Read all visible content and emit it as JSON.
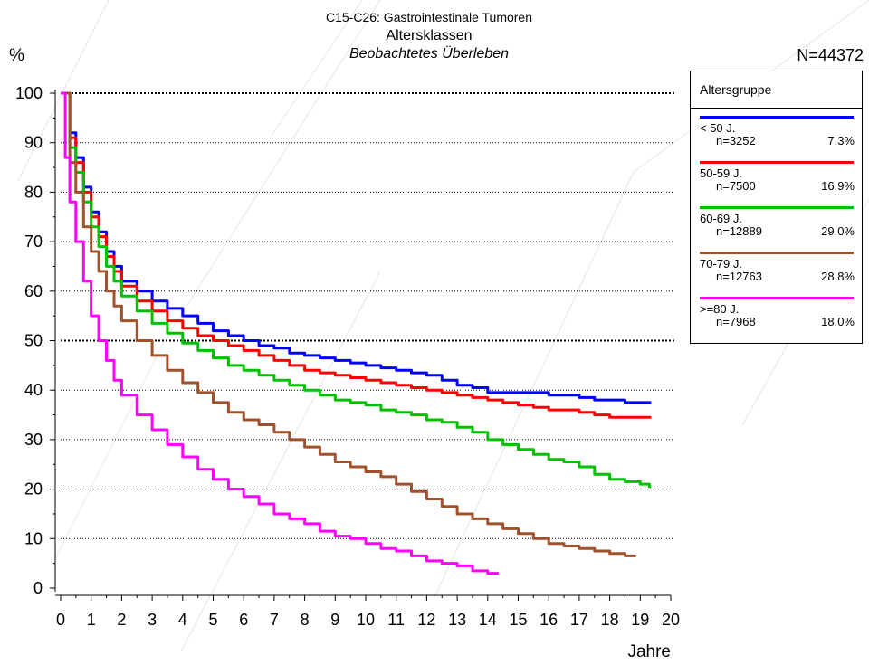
{
  "header": {
    "title": "C15-C26: Gastrointestinale Tumoren",
    "subtitle": "Altersklassen",
    "subtitle2": "Beobachtetes Überleben",
    "y_unit": "%",
    "n_total": "N=44372"
  },
  "chart_data": {
    "type": "line",
    "title": "C15-C26: Gastrointestinale Tumoren",
    "subtitle": "Altersklassen",
    "xlabel": "Jahre",
    "ylabel": "%",
    "xlim": [
      0,
      20
    ],
    "ylim": [
      0,
      100
    ],
    "x_ticks": [
      "0",
      "1",
      "2",
      "3",
      "4",
      "5",
      "6",
      "7",
      "8",
      "9",
      "10",
      "11",
      "12",
      "13",
      "14",
      "15",
      "16",
      "17",
      "18",
      "19",
      "20"
    ],
    "y_ticks": [
      "0",
      "10",
      "20",
      "30",
      "40",
      "50",
      "60",
      "70",
      "80",
      "90",
      "100"
    ],
    "grid": "horizontal dotted",
    "legend_position": "right",
    "series": [
      {
        "name": "< 50 J.",
        "n": "n=3252",
        "pct": "7.3%",
        "color": "#0000FF",
        "points": [
          [
            0,
            100
          ],
          [
            0.3,
            92
          ],
          [
            0.5,
            87
          ],
          [
            0.75,
            81
          ],
          [
            1,
            76
          ],
          [
            1.25,
            72
          ],
          [
            1.5,
            68
          ],
          [
            1.75,
            65
          ],
          [
            2,
            62
          ],
          [
            2.5,
            60
          ],
          [
            3,
            58
          ],
          [
            3.5,
            56.5
          ],
          [
            4,
            55
          ],
          [
            4.5,
            53.5
          ],
          [
            5,
            52
          ],
          [
            5.5,
            51
          ],
          [
            6,
            50
          ],
          [
            6.5,
            49
          ],
          [
            7,
            48.5
          ],
          [
            7.5,
            47.5
          ],
          [
            8,
            47
          ],
          [
            8.5,
            46.5
          ],
          [
            9,
            46
          ],
          [
            9.5,
            45.5
          ],
          [
            10,
            45
          ],
          [
            10.5,
            44.5
          ],
          [
            11,
            44
          ],
          [
            11.5,
            43.5
          ],
          [
            12,
            43
          ],
          [
            12.5,
            42
          ],
          [
            13,
            41
          ],
          [
            13.5,
            40.5
          ],
          [
            14,
            39.5
          ],
          [
            14.5,
            39.5
          ],
          [
            15,
            39.5
          ],
          [
            15.5,
            39.5
          ],
          [
            16,
            39
          ],
          [
            16.5,
            39
          ],
          [
            17,
            38.5
          ],
          [
            17.5,
            38
          ],
          [
            18,
            38
          ],
          [
            18.5,
            37.5
          ],
          [
            19,
            37.5
          ],
          [
            19.3,
            37.5
          ]
        ]
      },
      {
        "name": "50-59 J.",
        "n": "n=7500",
        "pct": "16.9%",
        "color": "#FF0000",
        "points": [
          [
            0,
            100
          ],
          [
            0.3,
            91
          ],
          [
            0.5,
            86
          ],
          [
            0.75,
            80
          ],
          [
            1,
            75
          ],
          [
            1.25,
            71
          ],
          [
            1.5,
            67
          ],
          [
            1.75,
            64
          ],
          [
            2,
            61
          ],
          [
            2.5,
            58
          ],
          [
            3,
            56
          ],
          [
            3.5,
            54
          ],
          [
            4,
            52.5
          ],
          [
            4.5,
            51
          ],
          [
            5,
            50
          ],
          [
            5.5,
            49
          ],
          [
            6,
            48
          ],
          [
            6.5,
            47
          ],
          [
            7,
            46
          ],
          [
            7.5,
            45
          ],
          [
            8,
            44
          ],
          [
            8.5,
            43.5
          ],
          [
            9,
            43
          ],
          [
            9.5,
            42.5
          ],
          [
            10,
            42
          ],
          [
            10.5,
            41.5
          ],
          [
            11,
            41
          ],
          [
            11.5,
            40.5
          ],
          [
            12,
            40
          ],
          [
            12.5,
            39.5
          ],
          [
            13,
            39
          ],
          [
            13.5,
            38.5
          ],
          [
            14,
            38
          ],
          [
            14.5,
            37.5
          ],
          [
            15,
            37
          ],
          [
            15.5,
            36.5
          ],
          [
            16,
            36
          ],
          [
            16.5,
            36
          ],
          [
            17,
            35.5
          ],
          [
            17.5,
            35
          ],
          [
            18,
            34.5
          ],
          [
            18.5,
            34.5
          ],
          [
            19,
            34.5
          ],
          [
            19.3,
            34.5
          ]
        ]
      },
      {
        "name": "60-69 J.",
        "n": "n=12889",
        "pct": "29.0%",
        "color": "#00C000",
        "points": [
          [
            0,
            100
          ],
          [
            0.3,
            89
          ],
          [
            0.5,
            84
          ],
          [
            0.75,
            78
          ],
          [
            1,
            73
          ],
          [
            1.25,
            69
          ],
          [
            1.5,
            65
          ],
          [
            1.75,
            62
          ],
          [
            2,
            59
          ],
          [
            2.5,
            56
          ],
          [
            3,
            53.5
          ],
          [
            3.5,
            51.5
          ],
          [
            4,
            49.5
          ],
          [
            4.5,
            48
          ],
          [
            5,
            46.5
          ],
          [
            5.5,
            45
          ],
          [
            6,
            44
          ],
          [
            6.5,
            43
          ],
          [
            7,
            42
          ],
          [
            7.5,
            41
          ],
          [
            8,
            40
          ],
          [
            8.5,
            39
          ],
          [
            9,
            38
          ],
          [
            9.5,
            37.5
          ],
          [
            10,
            37
          ],
          [
            10.5,
            36
          ],
          [
            11,
            35.5
          ],
          [
            11.5,
            35
          ],
          [
            12,
            34
          ],
          [
            12.5,
            33.5
          ],
          [
            13,
            32.5
          ],
          [
            13.5,
            31.5
          ],
          [
            14,
            30
          ],
          [
            14.5,
            29
          ],
          [
            15,
            28
          ],
          [
            15.5,
            27
          ],
          [
            16,
            26
          ],
          [
            16.5,
            25.5
          ],
          [
            17,
            24.5
          ],
          [
            17.5,
            23
          ],
          [
            18,
            22
          ],
          [
            18.5,
            21.5
          ],
          [
            19,
            21
          ],
          [
            19.3,
            20.5
          ]
        ]
      },
      {
        "name": "70-79 J.",
        "n": "n=12763",
        "pct": "28.8%",
        "color": "#A0522D",
        "points": [
          [
            0,
            100
          ],
          [
            0.3,
            86
          ],
          [
            0.5,
            80
          ],
          [
            0.75,
            73
          ],
          [
            1,
            68
          ],
          [
            1.25,
            64
          ],
          [
            1.5,
            60
          ],
          [
            1.75,
            57
          ],
          [
            2,
            54
          ],
          [
            2.5,
            50
          ],
          [
            3,
            47
          ],
          [
            3.5,
            44
          ],
          [
            4,
            41.5
          ],
          [
            4.5,
            39.5
          ],
          [
            5,
            37.5
          ],
          [
            5.5,
            35.5
          ],
          [
            6,
            34
          ],
          [
            6.5,
            33
          ],
          [
            7,
            31.5
          ],
          [
            7.5,
            30
          ],
          [
            8,
            28.5
          ],
          [
            8.5,
            27
          ],
          [
            9,
            25.5
          ],
          [
            9.5,
            24.5
          ],
          [
            10,
            23.5
          ],
          [
            10.5,
            22.5
          ],
          [
            11,
            21
          ],
          [
            11.5,
            19.5
          ],
          [
            12,
            18
          ],
          [
            12.5,
            16.5
          ],
          [
            13,
            15
          ],
          [
            13.5,
            14
          ],
          [
            14,
            13
          ],
          [
            14.5,
            12
          ],
          [
            15,
            11
          ],
          [
            15.5,
            10
          ],
          [
            16,
            9
          ],
          [
            16.5,
            8.5
          ],
          [
            17,
            8
          ],
          [
            17.5,
            7.5
          ],
          [
            18,
            7
          ],
          [
            18.5,
            6.5
          ],
          [
            18.8,
            6.5
          ]
        ]
      },
      {
        "name": ">=80 J.",
        "n": "n=7968",
        "pct": "18.0%",
        "color": "#FF00FF",
        "points": [
          [
            0,
            100
          ],
          [
            0.15,
            87
          ],
          [
            0.3,
            78
          ],
          [
            0.5,
            70
          ],
          [
            0.75,
            62
          ],
          [
            1,
            55
          ],
          [
            1.25,
            50
          ],
          [
            1.5,
            46
          ],
          [
            1.75,
            42
          ],
          [
            2,
            39
          ],
          [
            2.5,
            35
          ],
          [
            3,
            32
          ],
          [
            3.5,
            29
          ],
          [
            4,
            26.5
          ],
          [
            4.5,
            24
          ],
          [
            5,
            22
          ],
          [
            5.5,
            20
          ],
          [
            6,
            18.5
          ],
          [
            6.5,
            17
          ],
          [
            7,
            15
          ],
          [
            7.5,
            14
          ],
          [
            8,
            13
          ],
          [
            8.5,
            11.5
          ],
          [
            9,
            10.5
          ],
          [
            9.5,
            10
          ],
          [
            10,
            9
          ],
          [
            10.5,
            8
          ],
          [
            11,
            7.5
          ],
          [
            11.5,
            6.5
          ],
          [
            12,
            5.5
          ],
          [
            12.5,
            5
          ],
          [
            13,
            4.5
          ],
          [
            13.5,
            3.5
          ],
          [
            14,
            3
          ],
          [
            14.3,
            3
          ]
        ]
      }
    ]
  },
  "legend": {
    "title": "Altersgruppe",
    "entries": [
      {
        "name": "< 50 J.",
        "n": "n=3252",
        "pct": "7.3%",
        "color": "#0000FF"
      },
      {
        "name": "50-59 J.",
        "n": "n=7500",
        "pct": "16.9%",
        "color": "#FF0000"
      },
      {
        "name": "60-69 J.",
        "n": "n=12889",
        "pct": "29.0%",
        "color": "#00C000"
      },
      {
        "name": "70-79 J.",
        "n": "n=12763",
        "pct": "28.8%",
        "color": "#A0522D"
      },
      {
        "name": ">=80 J.",
        "n": "n=7968",
        "pct": "18.0%",
        "color": "#FF00FF"
      }
    ]
  }
}
